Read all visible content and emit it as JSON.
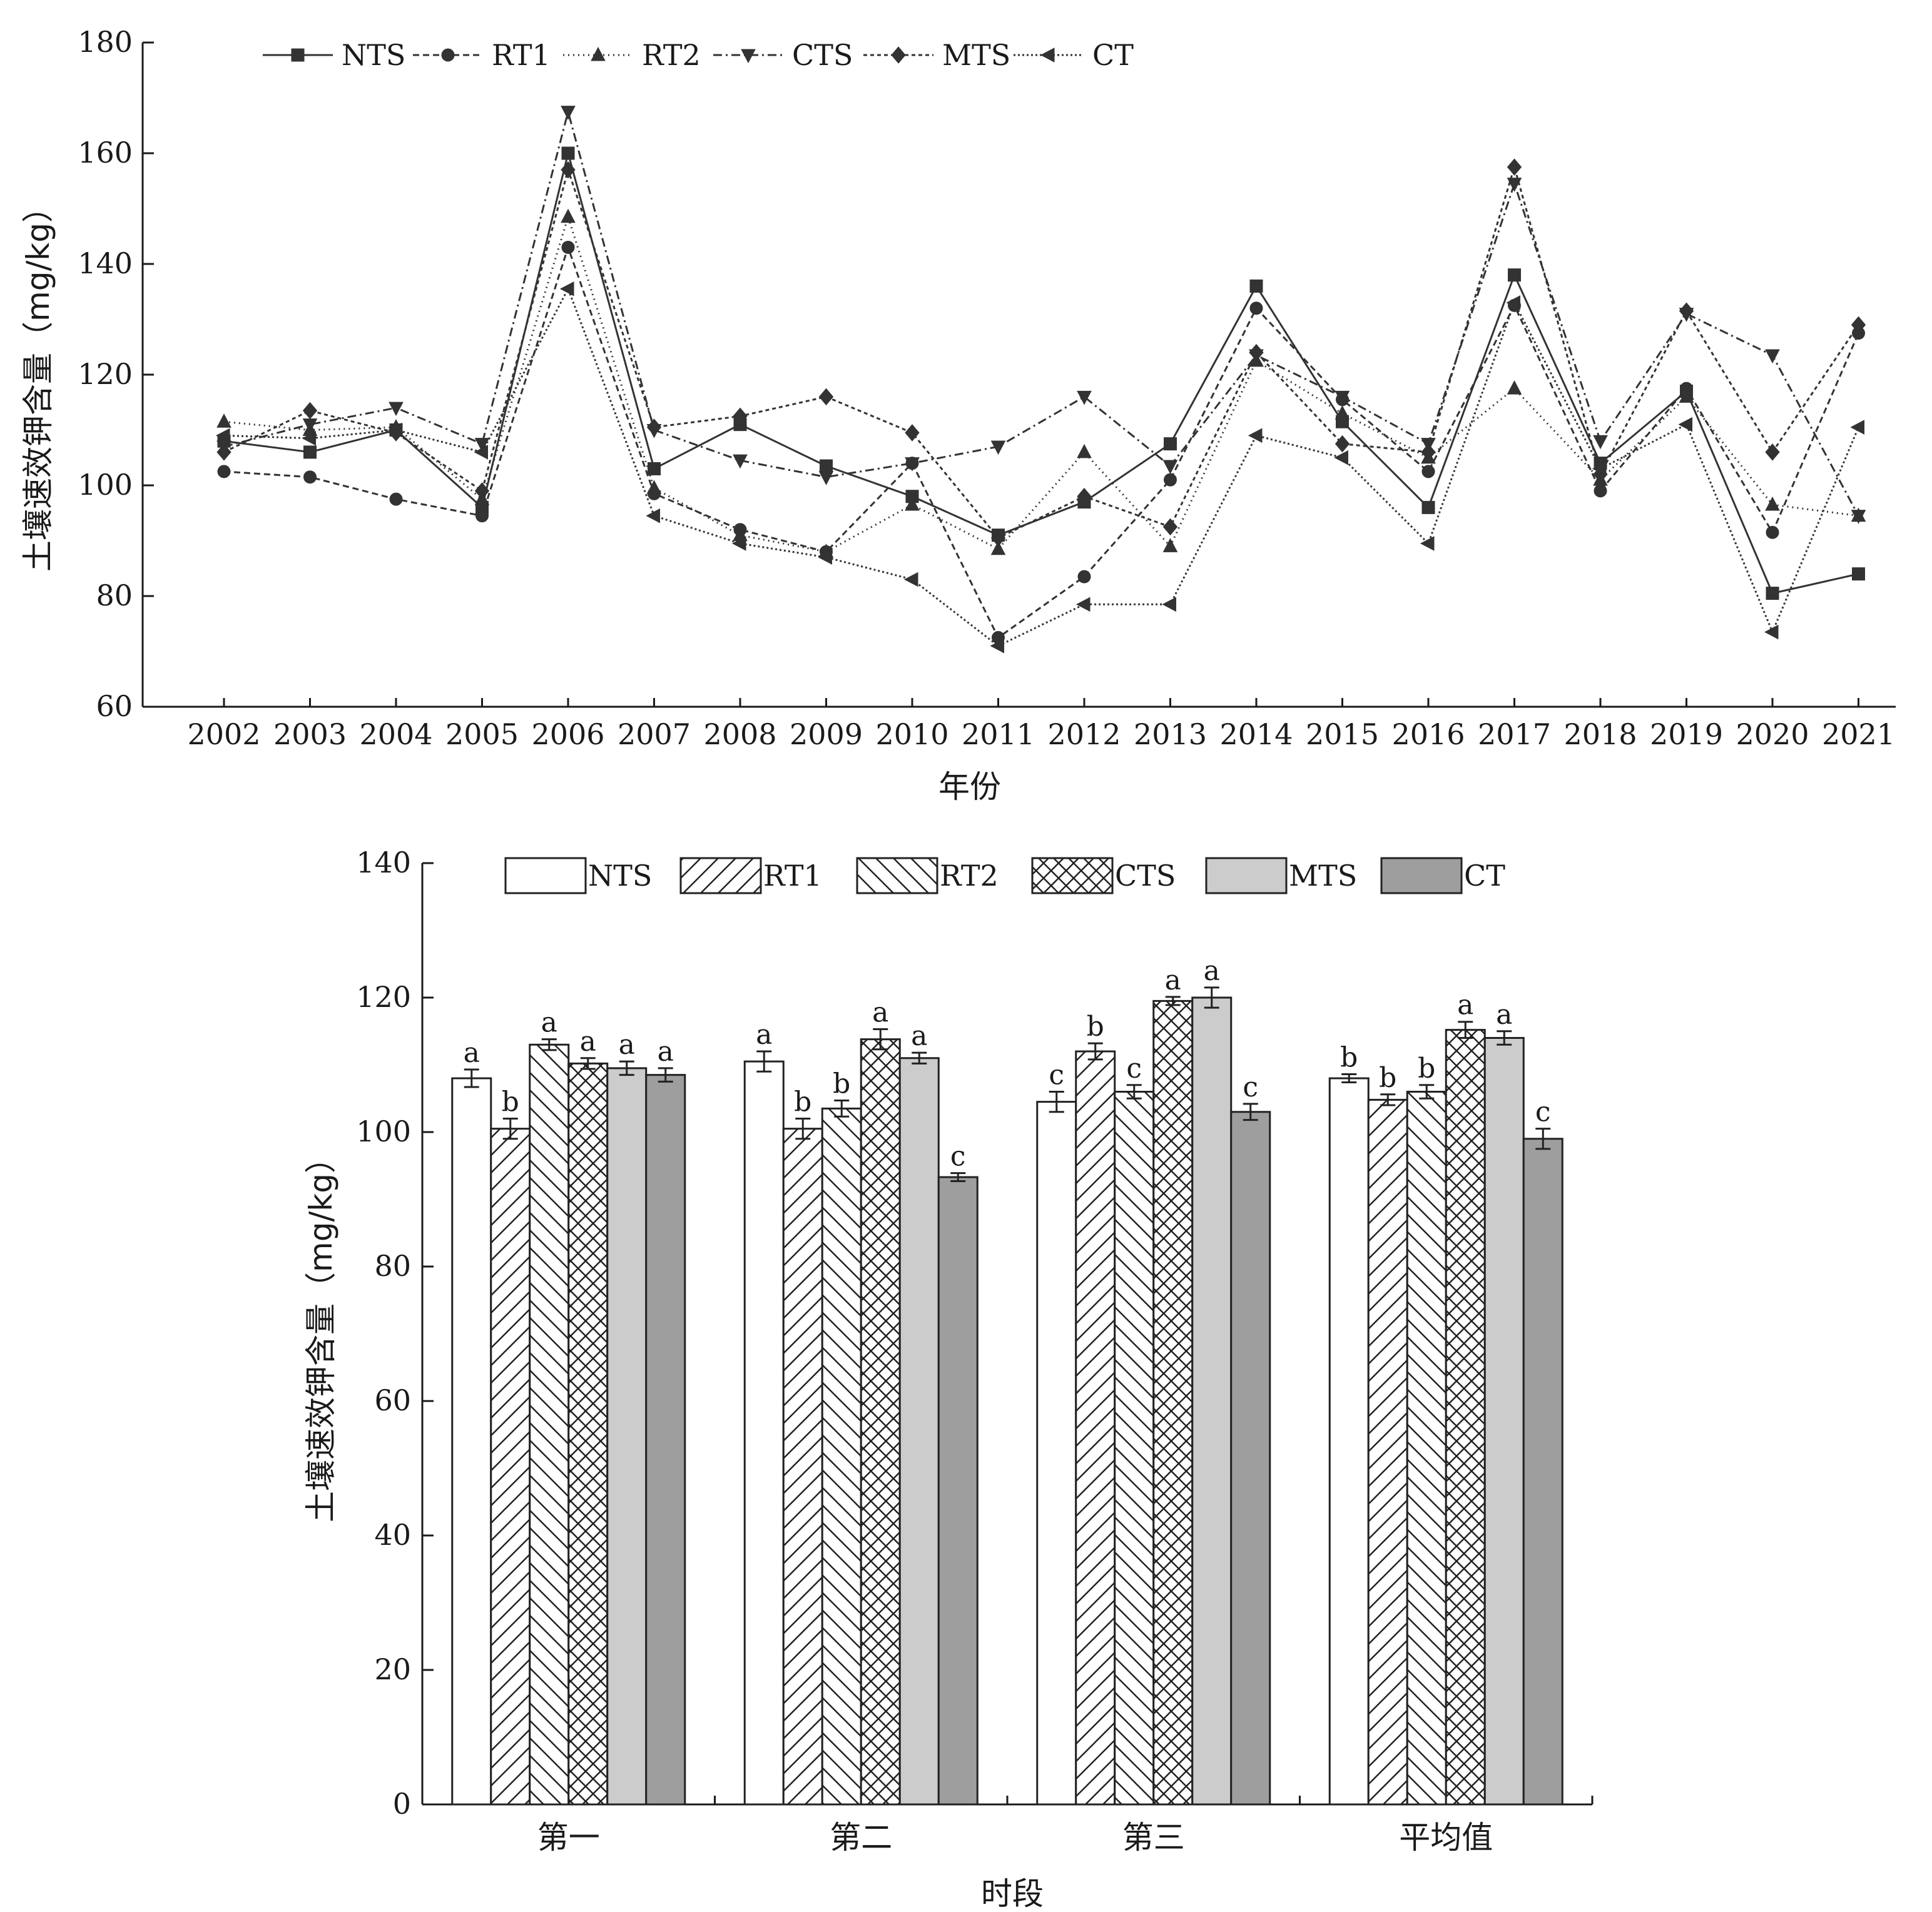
{
  "chart_data": [
    {
      "type": "line",
      "ylabel": "土壤速效钾含量（mg/kg）",
      "xlabel": "年份",
      "ylim": [
        60,
        180
      ],
      "yticks": [
        60,
        80,
        100,
        120,
        140,
        160,
        180
      ],
      "x": [
        "2002",
        "2003",
        "2004",
        "2005",
        "2006",
        "2007",
        "2008",
        "2009",
        "2010",
        "2011",
        "2012",
        "2013",
        "2014",
        "2015",
        "2016",
        "2017",
        "2018",
        "2019",
        "2020",
        "2021"
      ],
      "legend_position": "top-left",
      "series": [
        {
          "name": "NTS",
          "marker": "square",
          "dash": "none",
          "values": [
            108,
            106,
            110,
            96,
            160,
            103,
            111,
            103.5,
            98,
            91,
            97,
            107.5,
            136,
            111.5,
            96,
            138,
            104,
            117,
            80.5,
            84
          ]
        },
        {
          "name": "RT1",
          "marker": "circle",
          "dash": "10,6",
          "values": [
            102.5,
            101.5,
            97.5,
            94.5,
            143,
            98.5,
            92,
            88,
            104,
            72.5,
            83.5,
            101,
            132,
            115.5,
            102.5,
            132.5,
            99,
            117.5,
            91.5,
            127.5
          ]
        },
        {
          "name": "RT2",
          "marker": "triangle-up",
          "dash": "2,6",
          "values": [
            111.5,
            110,
            110.5,
            97.5,
            148.5,
            99.5,
            91,
            88,
            96.5,
            88.5,
            106,
            89,
            122.5,
            113,
            105,
            117.5,
            101,
            116,
            96.5,
            94.5
          ]
        },
        {
          "name": "CTS",
          "marker": "triangle-down",
          "dash": "14,6,3,6",
          "values": [
            107,
            111,
            114,
            107.5,
            167.5,
            110,
            104.5,
            101.5,
            104,
            107,
            116,
            103.5,
            123.5,
            116,
            107.5,
            154.5,
            108,
            131,
            123.5,
            94.5
          ]
        },
        {
          "name": "MTS",
          "marker": "diamond",
          "dash": "6,5",
          "values": [
            106,
            113.5,
            109.5,
            99,
            157,
            110.5,
            112.5,
            116,
            109.5,
            90.5,
            98,
            92.5,
            124,
            107.5,
            106,
            157.5,
            102,
            131.5,
            106,
            129
          ]
        },
        {
          "name": "CT",
          "marker": "triangle-left",
          "dash": "3,4",
          "values": [
            109,
            108.5,
            110,
            106,
            135.5,
            94.5,
            89.5,
            87,
            83,
            71,
            78.5,
            78.5,
            109,
            105,
            89.5,
            133,
            103,
            111,
            73.5,
            110.5
          ]
        }
      ]
    },
    {
      "type": "bar",
      "ylabel": "土壤速效钾含量（mg/kg）",
      "xlabel": "时段",
      "ylim": [
        0,
        140
      ],
      "yticks": [
        0,
        20,
        40,
        60,
        80,
        100,
        120,
        140
      ],
      "categories": [
        "第一",
        "第二",
        "第三",
        "平均值"
      ],
      "legend_position": "top",
      "series": [
        {
          "name": "NTS",
          "fill": "#ffffff",
          "pattern": "none",
          "values": [
            108,
            110.5,
            104.5,
            108
          ],
          "errors": [
            1.3,
            1.5,
            1.5,
            0.6
          ],
          "letters": [
            "a",
            "a",
            "c",
            "b"
          ]
        },
        {
          "name": "RT1",
          "fill": "#ffffff",
          "pattern": "diag-forward",
          "values": [
            100.5,
            100.5,
            112,
            104.8
          ],
          "errors": [
            1.5,
            1.5,
            1.2,
            0.8
          ],
          "letters": [
            "b",
            "b",
            "b",
            "b"
          ]
        },
        {
          "name": "RT2",
          "fill": "#ffffff",
          "pattern": "diag-back",
          "values": [
            113,
            103.5,
            106,
            106
          ],
          "errors": [
            0.8,
            1.2,
            1.0,
            1.0
          ],
          "letters": [
            "a",
            "b",
            "c",
            "b"
          ]
        },
        {
          "name": "CTS",
          "fill": "#ffffff",
          "pattern": "cross",
          "values": [
            110.2,
            113.8,
            119.5,
            115.2
          ],
          "errors": [
            0.8,
            1.5,
            0.6,
            1.2
          ],
          "letters": [
            "a",
            "a",
            "a",
            "a"
          ]
        },
        {
          "name": "MTS",
          "fill": "#cccccc",
          "pattern": "none",
          "values": [
            109.5,
            111,
            120,
            114
          ],
          "errors": [
            1.0,
            0.8,
            1.5,
            1.0
          ],
          "letters": [
            "a",
            "a",
            "a",
            "a"
          ]
        },
        {
          "name": "CT",
          "fill": "#9e9e9e",
          "pattern": "none",
          "values": [
            108.5,
            93.3,
            103,
            99
          ],
          "errors": [
            1.0,
            0.6,
            1.2,
            1.5
          ],
          "letters": [
            "a",
            "c",
            "c",
            "c"
          ]
        }
      ]
    }
  ]
}
